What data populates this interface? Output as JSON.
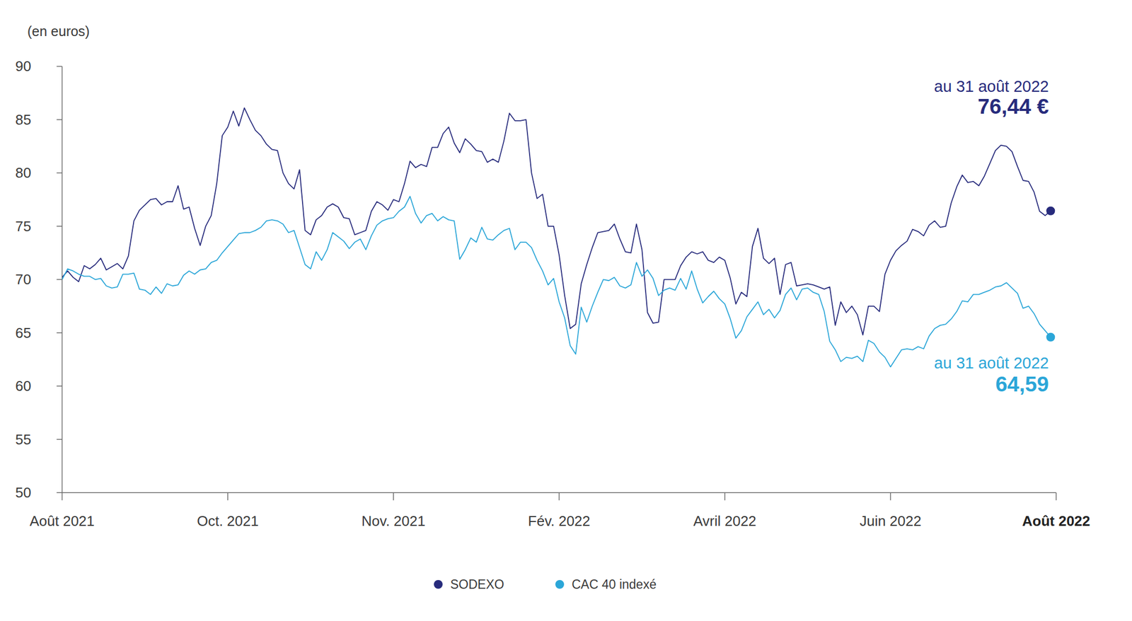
{
  "chart_data": {
    "type": "line",
    "y_label": "(en euros)",
    "ylim": [
      50,
      90
    ],
    "yticks": [
      50,
      55,
      60,
      65,
      70,
      75,
      80,
      85,
      90
    ],
    "grid": false,
    "legend": "bottom",
    "categories": [
      "Août 2021",
      null,
      null,
      null,
      null,
      null,
      null,
      null,
      null,
      null,
      null,
      null,
      null,
      null,
      null,
      null,
      null,
      null,
      null,
      null,
      null,
      null,
      null,
      null,
      null,
      null,
      null,
      null,
      null,
      null,
      "Oct. 2021",
      null,
      null,
      null,
      null,
      null,
      null,
      null,
      null,
      null,
      null,
      null,
      null,
      null,
      null,
      null,
      null,
      null,
      null,
      null,
      null,
      null,
      null,
      null,
      null,
      null,
      null,
      null,
      null,
      null,
      "Nov. 2021",
      null,
      null,
      null,
      null,
      null,
      null,
      null,
      null,
      null,
      null,
      null,
      null,
      null,
      null,
      null,
      null,
      null,
      null,
      null,
      null,
      null,
      null,
      null,
      null,
      null,
      null,
      null,
      null,
      null,
      "Fév. 2022",
      null,
      null,
      null,
      null,
      null,
      null,
      null,
      null,
      null,
      null,
      null,
      null,
      null,
      null,
      null,
      null,
      null,
      null,
      null,
      null,
      null,
      null,
      null,
      null,
      null,
      null,
      null,
      null,
      null,
      "Avril 2022",
      null,
      null,
      null,
      null,
      null,
      null,
      null,
      null,
      null,
      null,
      null,
      null,
      null,
      null,
      null,
      null,
      null,
      null,
      null,
      null,
      null,
      null,
      null,
      null,
      null,
      null,
      null,
      null,
      null,
      "Juin 2022",
      null,
      null,
      null,
      null,
      null,
      null,
      null,
      null,
      null,
      null,
      null,
      null,
      null,
      null,
      null,
      null,
      null,
      null,
      null,
      null,
      null,
      null,
      null,
      null,
      null,
      null,
      null,
      null,
      null,
      "Août 2022"
    ],
    "series": [
      {
        "name": "SODEXO",
        "color": "#272b7c",
        "marker": "last",
        "end_label": {
          "date": "au 31 août 2022",
          "value": "76,44 €"
        },
        "values": [
          70.2,
          70.8,
          70.2,
          69.8,
          71.3,
          71,
          71.4,
          72,
          70.9,
          71.2,
          71.5,
          71,
          72.2,
          75.5,
          76.5,
          77,
          77.5,
          77.6,
          77,
          77.3,
          77.3,
          78.8,
          76.6,
          76.8,
          74.8,
          73.2,
          75,
          76,
          79,
          83.5,
          84.3,
          85.8,
          84.4,
          86.1,
          85,
          84,
          83.5,
          82.7,
          82.2,
          82.1,
          80,
          79,
          78.5,
          80.3,
          74.6,
          74.2,
          75.6,
          76,
          76.8,
          77.1,
          76.8,
          75.8,
          75.7,
          74.2,
          74.4,
          74.6,
          76.4,
          77.3,
          77,
          76.5,
          77.5,
          77.3,
          79,
          81.1,
          80.5,
          80.8,
          80.6,
          82.4,
          82.4,
          83.7,
          84.3,
          82.8,
          81.9,
          83.2,
          82.7,
          82.1,
          82,
          81,
          81.3,
          81,
          83,
          85.6,
          84.9,
          84.9,
          85,
          80,
          77.6,
          78,
          75,
          75,
          72.3,
          68.5,
          65.4,
          65.8,
          69.6,
          71.4,
          73,
          74.4,
          74.5,
          74.6,
          75.2,
          73.8,
          72.6,
          72.5,
          75.2,
          72.8,
          66.9,
          65.9,
          66,
          70,
          70,
          70,
          71.3,
          72.1,
          72.6,
          72.4,
          72.6,
          71.8,
          71.6,
          72.1,
          71.8,
          70.1,
          67.7,
          68.8,
          68.4,
          73.1,
          74.8,
          72,
          71.5,
          72,
          68.6,
          71.4,
          71.6,
          69.4,
          69.5,
          69.6,
          69.5,
          69.3,
          69.1,
          69.3,
          65.7,
          67.9,
          66.9,
          67.5,
          66.7,
          64.8,
          67.5,
          67.5,
          67,
          70.5,
          71.8,
          72.7,
          73.2,
          73.6,
          74.7,
          74.5,
          74.1,
          75.1,
          75.5,
          74.9,
          75,
          77.2,
          78.7,
          79.8,
          79.1,
          79.2,
          78.8,
          79.7,
          80.9,
          82.1,
          82.6,
          82.5,
          82,
          80.6,
          79.3,
          79.2,
          78.2,
          76.4,
          76,
          76.44,
          null
        ]
      },
      {
        "name": "CAC 40 indexé",
        "color": "#2ba6d8",
        "marker": "last",
        "end_label": {
          "date": "au 31 août 2022",
          "value": "64,59"
        },
        "values": [
          70,
          71,
          70.8,
          70.5,
          70.3,
          70.3,
          70,
          70.1,
          69.4,
          69.2,
          69.3,
          70.5,
          70.5,
          70.6,
          69.1,
          69,
          68.6,
          69.3,
          68.7,
          69.6,
          69.4,
          69.5,
          70.4,
          70.8,
          70.5,
          70.9,
          71,
          71.6,
          71.8,
          72.5,
          73.1,
          73.7,
          74.3,
          74.4,
          74.4,
          74.6,
          74.9,
          75.5,
          75.6,
          75.5,
          75.2,
          74.4,
          74.6,
          73,
          71.4,
          71,
          72.6,
          71.8,
          72.8,
          74.4,
          74,
          73.6,
          72.9,
          73.5,
          73.8,
          72.8,
          74.1,
          75.1,
          75.5,
          75.7,
          75.8,
          76.4,
          76.8,
          77.8,
          76.2,
          75.3,
          76,
          76.2,
          75.5,
          75.9,
          75.6,
          75.5,
          71.9,
          72.8,
          73.9,
          73.5,
          74.9,
          73.8,
          73.7,
          74.2,
          74.6,
          74.8,
          72.8,
          73.5,
          73.5,
          73,
          71.8,
          70.8,
          69.5,
          70.1,
          67.9,
          66.4,
          63.8,
          63,
          67.4,
          66,
          67.5,
          68.8,
          70,
          69.9,
          70.2,
          69.4,
          69.2,
          69.5,
          71.6,
          70.3,
          70.9,
          70.1,
          68.5,
          69,
          69.2,
          69,
          70.1,
          69.1,
          70.8,
          69.1,
          67.8,
          68.4,
          68.9,
          68.2,
          67.7,
          66.3,
          64.5,
          65.2,
          66.5,
          67.2,
          67.9,
          66.7,
          67.2,
          66.4,
          67.1,
          68.6,
          69.2,
          68.1,
          69.1,
          69.2,
          68.8,
          68.6,
          67,
          64.2,
          63.4,
          62.3,
          62.7,
          62.6,
          62.8,
          62.3,
          64.3,
          64,
          63.2,
          62.7,
          61.8,
          62.6,
          63.4,
          63.5,
          63.4,
          63.7,
          63.5,
          64.7,
          65.4,
          65.7,
          65.8,
          66.3,
          67,
          68,
          67.9,
          68.6,
          68.6,
          68.8,
          69,
          69.3,
          69.4,
          69.7,
          69.2,
          68.7,
          67.3,
          67.5,
          66.8,
          65.8,
          65.2,
          64.59,
          null
        ]
      }
    ]
  }
}
